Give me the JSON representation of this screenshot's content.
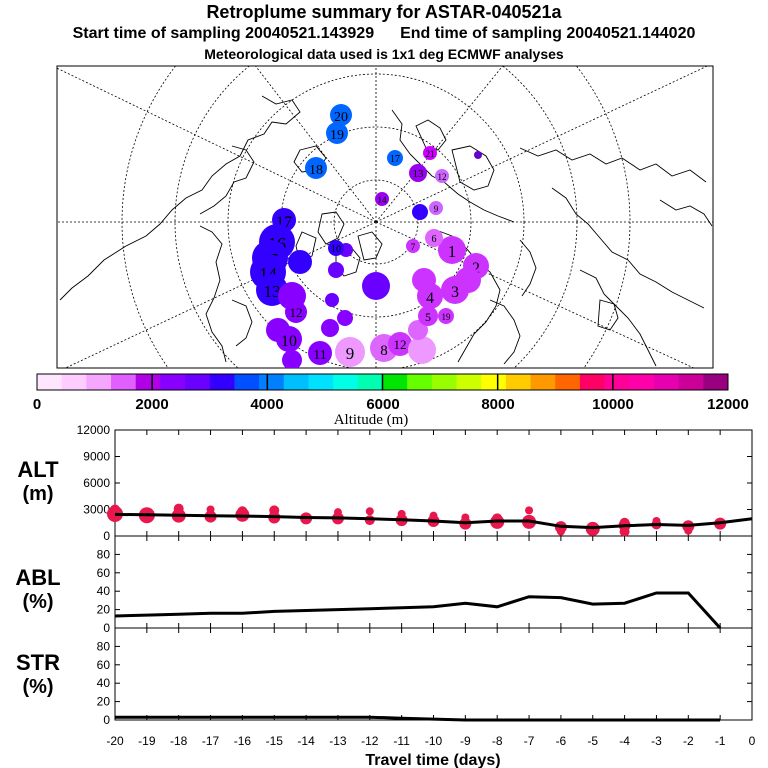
{
  "title": "Retroplume summary for ASTAR-040521a",
  "start_label": "Start time of sampling 20040521.143929",
  "end_label": "End time of sampling 20040521.144020",
  "met_label": "Meteorological data used is 1x1 deg ECMWF analyses",
  "colorbar": {
    "label": "Altitude (m)",
    "ticks": [
      "0",
      "2000",
      "4000",
      "6000",
      "8000",
      "10000",
      "12000"
    ],
    "colors": [
      "#ffe6ff",
      "#ffccff",
      "#f5a6ff",
      "#e060ff",
      "#b000e6",
      "#8800ff",
      "#6a00ff",
      "#3300ff",
      "#0050ff",
      "#0080ff",
      "#00bfff",
      "#00e0ff",
      "#00ffe6",
      "#00ffb0",
      "#00e600",
      "#66ff00",
      "#99ff00",
      "#ccff00",
      "#ffff00",
      "#ffcc00",
      "#ff9900",
      "#ff6600",
      "#ff0066",
      "#ff0099",
      "#ff00aa",
      "#e600b0",
      "#cc0099",
      "#990080"
    ]
  },
  "map_markers": [
    {
      "label": "20",
      "color": "#0066ff"
    },
    {
      "label": "19",
      "color": "#0066ff"
    },
    {
      "label": "18",
      "color": "#0066ff"
    },
    {
      "label": "17",
      "color": "#0066ff"
    },
    {
      "label": "21",
      "color": "#cc00ff"
    },
    {
      "label": "13",
      "color": "#9900ee"
    },
    {
      "label": "12",
      "color": "#cc66ff"
    },
    {
      "label": "14",
      "color": "#9900ee"
    },
    {
      "label": "9",
      "color": "#cc66ff"
    },
    {
      "label": "17",
      "color": "#3300ff"
    },
    {
      "label": "16",
      "color": "#3300ff"
    },
    {
      "label": "15",
      "color": "#3300ff"
    },
    {
      "label": "14",
      "color": "#3300ff"
    },
    {
      "label": "13",
      "color": "#3300ff"
    },
    {
      "label": "12",
      "color": "#8800ff"
    },
    {
      "label": "10",
      "color": "#8800ff"
    },
    {
      "label": "11",
      "color": "#8800ff"
    },
    {
      "label": "9",
      "color": "#ee99ff"
    },
    {
      "label": "8",
      "color": "#dd66ff"
    },
    {
      "label": "12",
      "color": "#cc33ff"
    },
    {
      "label": "1",
      "color": "#cc33ff"
    },
    {
      "label": "2",
      "color": "#cc33ff"
    },
    {
      "label": "3",
      "color": "#cc33ff"
    },
    {
      "label": "4",
      "color": "#cc33ff"
    },
    {
      "label": "5",
      "color": "#cc33ff"
    },
    {
      "label": "6",
      "color": "#dd66ff"
    },
    {
      "label": "7",
      "color": "#cc33ff"
    },
    {
      "label": "19",
      "color": "#cc33ff"
    },
    {
      "label": "10",
      "color": "#3300ff"
    }
  ],
  "chart_data": [
    {
      "type": "scatter",
      "panel": "ALT",
      "ylabel": "ALT",
      "yunit": "(m)",
      "ylim": [
        0,
        12000
      ],
      "yticks": [
        "0",
        "3000",
        "6000",
        "9000",
        "12000"
      ],
      "xlim": [
        -20,
        0
      ],
      "line": {
        "x": [
          -20,
          -19,
          -18,
          -17,
          -16,
          -15,
          -14,
          -13,
          -12,
          -11,
          -10,
          -9,
          -8,
          -7,
          -6,
          -5,
          -4,
          -3,
          -2,
          -1,
          0
        ],
        "y": [
          2450,
          2400,
          2350,
          2300,
          2250,
          2200,
          2100,
          2050,
          1950,
          1850,
          1700,
          1500,
          1700,
          1700,
          1100,
          950,
          1150,
          1300,
          1200,
          1500,
          1950
        ]
      },
      "points": {
        "x": [
          -20,
          -19,
          -18,
          -17,
          -16,
          -15,
          -14,
          -13,
          -12,
          -11,
          -10,
          -9,
          -8,
          -7,
          -6,
          -5,
          -4,
          -3,
          -2,
          -1,
          -20,
          -18,
          -17,
          -16,
          -15,
          -13,
          -12,
          -11,
          -10,
          -9,
          -8,
          -7,
          -6,
          -4,
          -4,
          -3,
          -2
        ],
        "y": [
          2500,
          2350,
          2300,
          2200,
          2400,
          2100,
          2000,
          2000,
          1800,
          1800,
          1700,
          1400,
          1600,
          1600,
          1000,
          800,
          1200,
          1300,
          1100,
          1400,
          3000,
          3100,
          3000,
          2800,
          2900,
          2700,
          2800,
          2500,
          2300,
          2100,
          2000,
          2900,
          500,
          500,
          1500,
          1700,
          600
        ],
        "r": [
          8,
          8,
          7,
          6,
          7,
          6,
          6,
          6,
          5,
          6,
          6,
          6,
          7,
          7,
          6,
          7,
          6,
          5,
          6,
          6,
          5,
          5,
          4,
          5,
          5,
          4,
          4,
          4,
          4,
          4,
          5,
          4,
          4,
          5,
          5,
          4,
          4
        ]
      },
      "point_color": "#e8174c"
    },
    {
      "type": "line",
      "panel": "ABL",
      "ylabel": "ABL",
      "yunit": "(%)",
      "ylim": [
        0,
        100
      ],
      "yticks": [
        "0",
        "20",
        "40",
        "60",
        "80"
      ],
      "xlim": [
        -20,
        0
      ],
      "x": [
        -20,
        -19,
        -18,
        -17,
        -16,
        -15,
        -14,
        -13,
        -12,
        -11,
        -10,
        -9,
        -8,
        -7,
        -6,
        -5,
        -4,
        -3,
        -2,
        -1
      ],
      "y": [
        13,
        14,
        15,
        16,
        16,
        18,
        19,
        20,
        21,
        22,
        23,
        27,
        23,
        34,
        33,
        26,
        27,
        38,
        38,
        0
      ]
    },
    {
      "type": "line",
      "panel": "STR",
      "ylabel": "STR",
      "yunit": "(%)",
      "ylim": [
        0,
        100
      ],
      "yticks": [
        "0",
        "20",
        "40",
        "60",
        "80"
      ],
      "xlim": [
        -20,
        0
      ],
      "xlabel": "Travel time (days)",
      "xticks": [
        "-20",
        "-19",
        "-18",
        "-17",
        "-16",
        "-15",
        "-14",
        "-13",
        "-12",
        "-11",
        "-10",
        "-9",
        "-8",
        "-7",
        "-6",
        "-5",
        "-4",
        "-3",
        "-2",
        "-1",
        "0"
      ],
      "x": [
        -20,
        -19,
        -18,
        -17,
        -16,
        -15,
        -14,
        -13,
        -12,
        -11,
        -10,
        -9,
        -8,
        -7,
        -6,
        -5,
        -4,
        -3,
        -2,
        -1
      ],
      "y": [
        3,
        3,
        3,
        3,
        3,
        3,
        3,
        3,
        3,
        2,
        1,
        0,
        0,
        0,
        0,
        0,
        0,
        0,
        0,
        0
      ]
    }
  ]
}
